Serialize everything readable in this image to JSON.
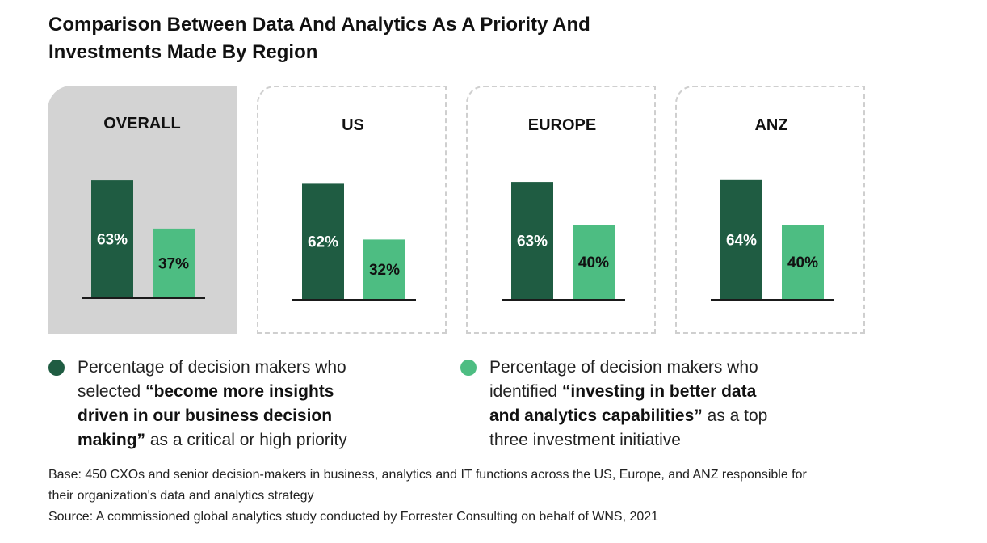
{
  "title": {
    "line1": "Comparison Between Data And Analytics As A Priority And",
    "line2": "Investments Made By Region"
  },
  "colors": {
    "dark_series": "#1f5c42",
    "light_series": "#4dbd82",
    "highlight_panel": "#d3d3d3",
    "dashed_border": "#cfcfcf"
  },
  "chart_data": {
    "type": "bar",
    "title": "Comparison Between Data And Analytics As A Priority And Investments Made By Region",
    "categories": [
      "OVERALL",
      "US",
      "EUROPE",
      "ANZ"
    ],
    "series": [
      {
        "name": "Percentage of decision makers who selected “become more insights driven in our business decision making” as a critical or high priority",
        "values": [
          63,
          62,
          63,
          64
        ]
      },
      {
        "name": "Percentage of decision makers who identified “investing in better data and analytics capabilities” as a top three investment initiative",
        "values": [
          37,
          32,
          40,
          40
        ]
      }
    ],
    "unit": "%",
    "ylim": [
      0,
      100
    ],
    "grid": false,
    "legend_position": "bottom"
  },
  "legend": {
    "dark": {
      "prefix": "Percentage of decision makers who",
      "selected": "selected ",
      "bold_1": "“become more insights",
      "bold_2": "driven in our business decision",
      "bold_3": "making”",
      "suffix": " as a critical or high priority"
    },
    "light": {
      "prefix": "Percentage of decision makers who",
      "identified": "identified ",
      "bold_1": "“investing in better data",
      "bold_2": "and analytics capabilities”",
      "suffix_1": " as a top",
      "suffix_2": "three investment initiative"
    }
  },
  "notes": {
    "base_line1": "Base: 450 CXOs and senior decision-makers in business, analytics and IT functions across the US, Europe, and ANZ responsible for",
    "base_line2": "their organization's data and analytics strategy",
    "source": "Source:  A commissioned global analytics study conducted by Forrester Consulting on behalf of WNS, 2021"
  }
}
